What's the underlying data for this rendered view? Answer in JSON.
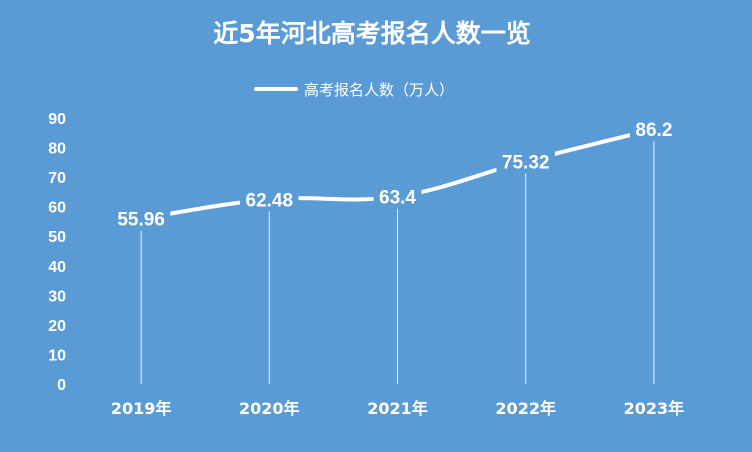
{
  "chart_data": {
    "type": "line",
    "title": "近5年河北高考报名人数一览",
    "categories": [
      "2019年",
      "2020年",
      "2021年",
      "2022年",
      "2023年"
    ],
    "series": [
      {
        "name": "高考报名人数（万人）",
        "values": [
          55.96,
          62.48,
          63.4,
          75.32,
          86.2
        ]
      }
    ],
    "data_labels": [
      "55.96",
      "62.48",
      "63.4",
      "75.32",
      "86.2"
    ],
    "yticks": [
      "0",
      "10",
      "20",
      "30",
      "40",
      "50",
      "60",
      "70",
      "80",
      "90"
    ],
    "ylim": [
      0,
      90
    ],
    "grid": false,
    "legend_position": "top-center",
    "colors": {
      "background": "#5b9bd5",
      "line": "#ffffff",
      "text": "#ffffff",
      "drop_line": "#ffffff"
    }
  }
}
